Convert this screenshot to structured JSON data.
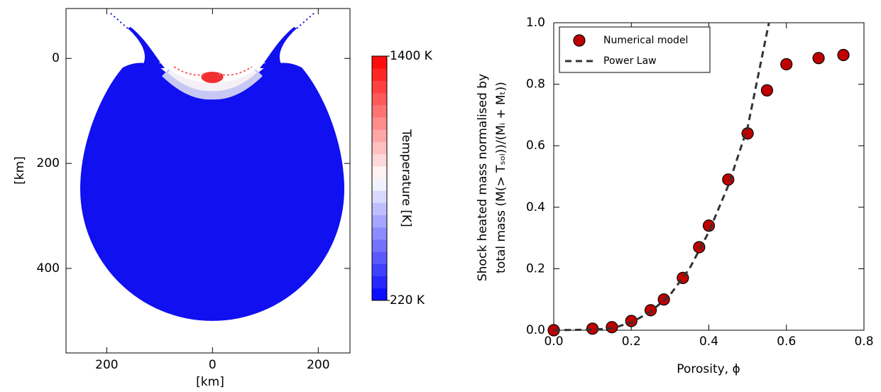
{
  "chart_data": [
    {
      "type": "image",
      "xlabel": "[km]",
      "ylabel": "[km]",
      "xlim": [
        -277,
        260
      ],
      "ylim": [
        561,
        -95
      ],
      "xticks": [
        {
          "value": -200,
          "label": "200"
        },
        0,
        200
      ],
      "yticks": [
        0,
        200,
        400
      ],
      "colorbar": {
        "label": "Temperature [K]",
        "clim": [
          220,
          1400
        ],
        "ticks": [
          {
            "value": 220,
            "label": "220 K"
          },
          {
            "value": 1400,
            "label": "1400 K"
          }
        ],
        "colormap": [
          "#0000ff",
          "#ffffff",
          "#ff0000"
        ]
      }
    },
    {
      "type": "scatter",
      "xlabel": "Porosity, ϕ",
      "ylabel": [
        "Shock heated mass normalised by",
        "total mass (M(> Tₛₒₗ))/(Mᵢ + Mₜ))"
      ],
      "xlim": [
        0,
        0.8
      ],
      "ylim": [
        0,
        1
      ],
      "xticks": [
        {
          "value": 0,
          "label": "0.0"
        },
        0.2,
        0.4,
        0.6,
        0.8
      ],
      "yticks": [
        {
          "value": 0,
          "label": "0.0"
        },
        0.2,
        0.4,
        0.6,
        0.8,
        {
          "value": 1,
          "label": "1.0"
        }
      ],
      "legend": "upper left",
      "series": [
        {
          "name": "Numerical model",
          "color": "#c00000",
          "style": "marker",
          "x": [
            0,
            0.1,
            0.15,
            0.2,
            0.25,
            0.284,
            0.333,
            0.375,
            0.4,
            0.45,
            0.5,
            0.55,
            0.6,
            0.683,
            0.747
          ],
          "values": [
            0,
            0.005,
            0.01,
            0.03,
            0.065,
            0.1,
            0.17,
            0.27,
            0.34,
            0.49,
            0.64,
            0.78,
            0.865,
            0.885,
            0.895
          ]
        },
        {
          "name": "Power Law",
          "color": "#333333",
          "style": "dashed",
          "x": [
            0,
            0.1,
            0.15,
            0.2,
            0.25,
            0.3,
            0.35,
            0.4,
            0.45,
            0.5,
            0.555
          ],
          "values": [
            0,
            0.002,
            0.006,
            0.025,
            0.06,
            0.115,
            0.2,
            0.32,
            0.47,
            0.66,
            1.0
          ]
        }
      ]
    }
  ]
}
